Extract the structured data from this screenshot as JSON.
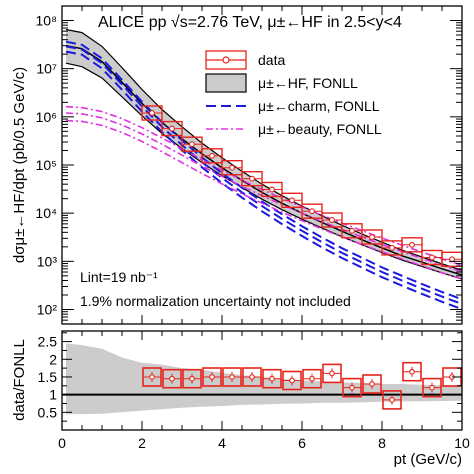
{
  "chart_data": [
    {
      "type": "line",
      "title": "ALICE pp √s=2.76 TeV, μ±←HF in 2.5<y<4",
      "xlabel": "pt (GeV/c)",
      "ylabel": "dσμ±←HF/dpt (pb/0.5 GeV/c)",
      "xlim": [
        0,
        10
      ],
      "ylim": [
        50,
        200000000
      ],
      "yscale": "log",
      "xticks": [
        "0",
        "2",
        "4",
        "6",
        "8",
        "10"
      ],
      "yticks": [
        "10²",
        "10³",
        "10⁴",
        "10⁵",
        "10⁶",
        "10⁷",
        "10⁸"
      ],
      "legend_position": "top-right",
      "legend": [
        {
          "label": "data",
          "color": "#e8231c",
          "style": "box-marker"
        },
        {
          "label": "μ±←HF, FONLL",
          "color": "#000000",
          "style": "band"
        },
        {
          "label": "μ±←charm, FONLL",
          "color": "#1a1adf",
          "style": "dashed"
        },
        {
          "label": "μ±←beauty, FONLL",
          "color": "#e030e0",
          "style": "dash-dot"
        }
      ],
      "annotations": [
        "Lint=19 nb⁻¹",
        "1.9% normalization uncertainty not included"
      ],
      "series": [
        {
          "name": "data",
          "x": [
            2.25,
            2.75,
            3.25,
            3.75,
            4.25,
            4.75,
            5.25,
            5.75,
            6.25,
            6.75,
            7.25,
            7.75,
            8.25,
            8.75,
            9.25,
            9.75
          ],
          "y": [
            1200000,
            570000,
            270000,
            155000,
            88000,
            52000,
            31000,
            18500,
            11000,
            7200,
            4300,
            3200,
            1900,
            2200,
            1200,
            1100
          ]
        },
        {
          "name": "μ±←HF, FONLL",
          "x": [
            0.1,
            0.5,
            1,
            1.5,
            2,
            2.5,
            3,
            3.5,
            4,
            4.5,
            5,
            5.5,
            6,
            6.5,
            7,
            7.5,
            8,
            8.5,
            9,
            9.5,
            10
          ],
          "y": [
            30000000,
            26000000,
            14000000,
            5200000,
            1900000,
            760000,
            350000,
            170000,
            88000,
            48000,
            27000,
            16000,
            10000,
            6400,
            4200,
            2800,
            1900,
            1300,
            960,
            700,
            520
          ],
          "band_low": [
            13000000,
            11000000,
            6400000,
            2600000,
            1050000,
            450000,
            220000,
            112000,
            60000,
            34000,
            19500,
            11800,
            7500,
            4900,
            3250,
            2200,
            1520,
            1060,
            780,
            575,
            430
          ],
          "band_high": [
            65000000,
            56000000,
            29000000,
            10500000,
            3700000,
            1420000,
            620000,
            285000,
            142000,
            74000,
            40000,
            23000,
            14000,
            8800,
            5600,
            3700,
            2500,
            1700,
            1230,
            890,
            650
          ]
        },
        {
          "name": "μ±←charm, FONLL",
          "x": [
            0.1,
            0.5,
            1,
            1.5,
            2,
            2.5,
            3,
            3.5,
            4,
            4.5,
            5,
            5.5,
            6,
            6.5,
            7,
            7.5,
            8,
            8.5,
            9,
            9.5,
            10
          ],
          "y": [
            29000000,
            25000000,
            13000000,
            4700000,
            1650000,
            620000,
            260000,
            115000,
            54000,
            27000,
            14000,
            7600,
            4300,
            2500,
            1500,
            950,
            600,
            400,
            270,
            185,
            130
          ]
        },
        {
          "name": "μ±←beauty, FONLL",
          "x": [
            0.1,
            0.5,
            1,
            1.5,
            2,
            2.5,
            3,
            3.5,
            4,
            4.5,
            5,
            5.5,
            6,
            6.5,
            7,
            7.5,
            8,
            8.5,
            9,
            9.5,
            10
          ],
          "y": [
            1200000,
            1150000,
            950000,
            680000,
            440000,
            270000,
            160000,
            95000,
            58000,
            36000,
            23000,
            15000,
            10000,
            6700,
            4600,
            3200,
            2250,
            1600,
            1150,
            830,
            610
          ]
        }
      ]
    },
    {
      "type": "line",
      "xlabel": "pt (GeV/c)",
      "ylabel": "data/FONLL",
      "xlim": [
        0,
        10
      ],
      "ylim": [
        0,
        2.8
      ],
      "xticks": [
        "0",
        "2",
        "4",
        "6",
        "8",
        "10"
      ],
      "yticks": [
        "0.5",
        "1",
        "1.5",
        "2",
        "2.5"
      ],
      "reference_line": 1,
      "series": [
        {
          "name": "data/FONLL",
          "x": [
            2.25,
            2.75,
            3.25,
            3.75,
            4.25,
            4.75,
            5.25,
            5.75,
            6.25,
            6.75,
            7.25,
            7.75,
            8.25,
            8.75,
            9.25,
            9.75
          ],
          "y": [
            1.5,
            1.45,
            1.45,
            1.5,
            1.5,
            1.5,
            1.45,
            1.4,
            1.45,
            1.6,
            1.2,
            1.3,
            0.85,
            1.65,
            1.2,
            1.5
          ]
        },
        {
          "name": "FONLL uncertainty band",
          "x": [
            0.1,
            0.5,
            1,
            1.5,
            2,
            2.5,
            3,
            3.5,
            4,
            4.5,
            5,
            5.5,
            6,
            6.5,
            7,
            7.5,
            8,
            8.5,
            9,
            9.5,
            10
          ],
          "band_low": [
            0.45,
            0.45,
            0.46,
            0.5,
            0.55,
            0.59,
            0.63,
            0.66,
            0.68,
            0.71,
            0.72,
            0.74,
            0.75,
            0.77,
            0.77,
            0.78,
            0.8,
            0.81,
            0.81,
            0.82,
            0.83
          ],
          "band_high": [
            2.45,
            2.4,
            2.3,
            2.05,
            1.9,
            1.85,
            1.75,
            1.7,
            1.62,
            1.55,
            1.5,
            1.45,
            1.4,
            1.38,
            1.35,
            1.33,
            1.3,
            1.3,
            1.28,
            1.27,
            1.26
          ]
        }
      ]
    }
  ]
}
